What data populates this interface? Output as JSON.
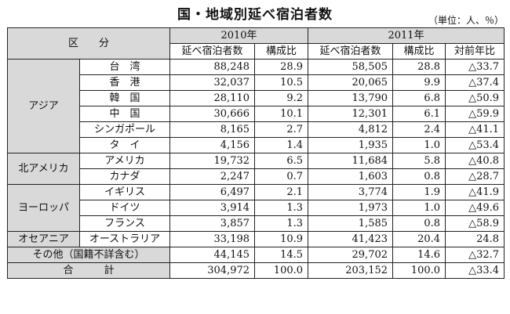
{
  "title": "国・地域別延べ宿泊者数",
  "unit": "（単位：人、％）",
  "header": {
    "category": "区　　分",
    "year_2010": "2010年",
    "year_2011": "2011年",
    "col_guests_2010": "延べ宿泊者数",
    "col_ratio_2010": "構成比",
    "col_guests_2011": "延べ宿泊者数",
    "col_ratio_2011": "構成比",
    "col_yoy": "対前年比"
  },
  "groups": {
    "asia": "アジア",
    "north_america": "北アメリカ",
    "europe": "ヨーロッパ",
    "oceania": "オセアニア"
  },
  "rows": [
    {
      "name": "台　湾",
      "g2010": "88,248",
      "r2010": "28.9",
      "g2011": "58,505",
      "r2011": "28.8",
      "yoy": "△33.7"
    },
    {
      "name": "香　港",
      "g2010": "32,037",
      "r2010": "10.5",
      "g2011": "20,065",
      "r2011": "9.9",
      "yoy": "△37.4"
    },
    {
      "name": "韓　国",
      "g2010": "28,110",
      "r2010": "9.2",
      "g2011": "13,790",
      "r2011": "6.8",
      "yoy": "△50.9"
    },
    {
      "name": "中　国",
      "g2010": "30,666",
      "r2010": "10.1",
      "g2011": "12,301",
      "r2011": "6.1",
      "yoy": "△59.9"
    },
    {
      "name": "シンガポール",
      "g2010": "8,165",
      "r2010": "2.7",
      "g2011": "4,812",
      "r2011": "2.4",
      "yoy": "△41.1"
    },
    {
      "name": "タ　イ",
      "g2010": "4,156",
      "r2010": "1.4",
      "g2011": "1,935",
      "r2011": "1.0",
      "yoy": "△53.4"
    },
    {
      "name": "アメリカ",
      "g2010": "19,732",
      "r2010": "6.5",
      "g2011": "11,684",
      "r2011": "5.8",
      "yoy": "△40.8"
    },
    {
      "name": "カナダ",
      "g2010": "2,247",
      "r2010": "0.7",
      "g2011": "1,603",
      "r2011": "0.8",
      "yoy": "△28.7"
    },
    {
      "name": "イギリス",
      "g2010": "6,497",
      "r2010": "2.1",
      "g2011": "3,774",
      "r2011": "1.9",
      "yoy": "△41.9"
    },
    {
      "name": "ドイツ",
      "g2010": "3,914",
      "r2010": "1.3",
      "g2011": "1,973",
      "r2011": "1.0",
      "yoy": "△49.6"
    },
    {
      "name": "フランス",
      "g2010": "3,857",
      "r2010": "1.3",
      "g2011": "1,585",
      "r2011": "0.8",
      "yoy": "△58.9"
    },
    {
      "name": "オーストラリア",
      "g2010": "33,198",
      "r2010": "10.9",
      "g2011": "41,423",
      "r2011": "20.4",
      "yoy": "24.8"
    }
  ],
  "other": {
    "name": "その他（国籍不詳含む）",
    "g2010": "44,145",
    "r2010": "14.5",
    "g2011": "29,702",
    "r2011": "14.6",
    "yoy": "△32.7"
  },
  "total": {
    "name": "合　　　計",
    "g2010": "304,972",
    "r2010": "100.0",
    "g2011": "203,152",
    "r2011": "100.0",
    "yoy": "△33.4"
  }
}
